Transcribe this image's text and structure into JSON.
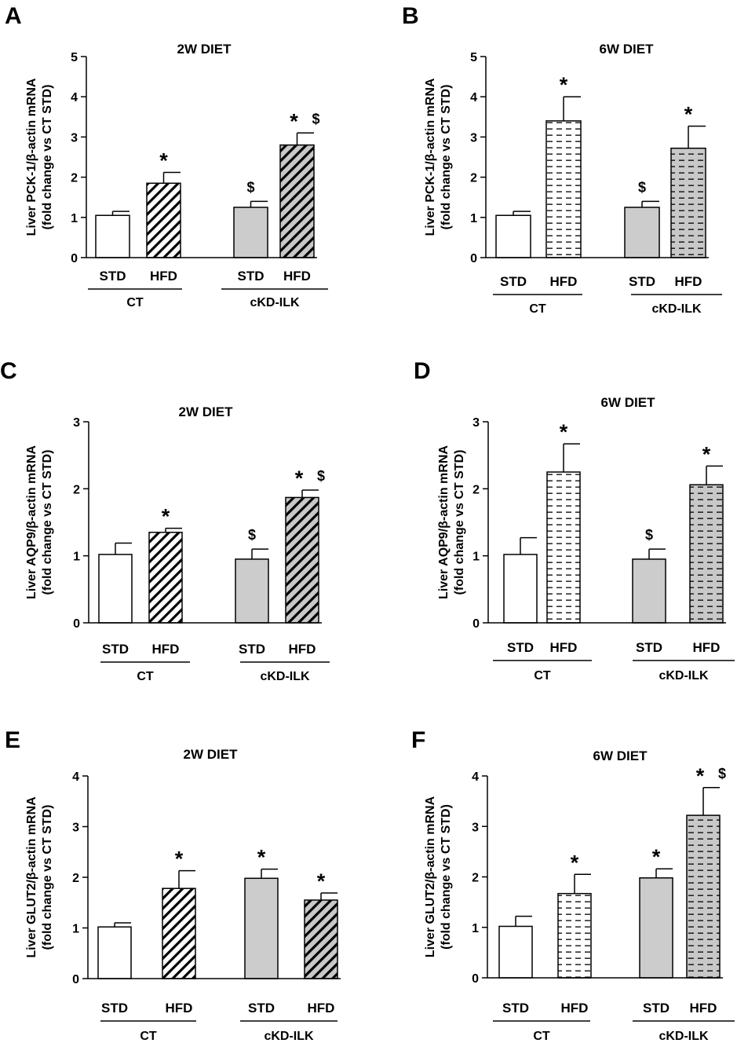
{
  "colors": {
    "axis": "#000000",
    "STD_CT": "#ffffff",
    "STD_cKD": "#cccccc",
    "HFD_CT": "#ffffff",
    "HFD_cKD": "#c8c8c8"
  },
  "chart_data": [
    {
      "letter": "A",
      "type": "bar",
      "title": "2W DIET",
      "ylabel_line1": "Liver PCK-1/β-actin mRNA",
      "ylabel_line2": "(fold change vs CT STD)",
      "ylim": [
        0,
        5
      ],
      "yticks": [
        "0",
        "1",
        "2",
        "3",
        "4",
        "5"
      ],
      "pattern": "diagonal",
      "categories": [
        "STD",
        "HFD",
        "STD",
        "HFD"
      ],
      "groups": [
        "CT",
        "cKD-ILK"
      ],
      "values": [
        1.05,
        1.85,
        1.25,
        2.8
      ],
      "errors": [
        0.1,
        0.27,
        0.15,
        0.3
      ],
      "marks": [
        [
          "",
          ""
        ],
        [
          "*",
          ""
        ],
        [
          "",
          "$"
        ],
        [
          "*",
          "$"
        ]
      ]
    },
    {
      "letter": "B",
      "type": "bar",
      "title": "6W DIET",
      "ylabel_line1": "Liver PCK-1/β-actin mRNA",
      "ylabel_line2": "(fold change vs CT STD)",
      "ylim": [
        0,
        5
      ],
      "yticks": [
        "0",
        "1",
        "2",
        "3",
        "4",
        "5"
      ],
      "pattern": "dashed",
      "categories": [
        "STD",
        "HFD",
        "STD",
        "HFD"
      ],
      "groups": [
        "CT",
        "cKD-ILK"
      ],
      "values": [
        1.05,
        3.4,
        1.25,
        2.72
      ],
      "errors": [
        0.1,
        0.6,
        0.15,
        0.55
      ],
      "marks": [
        [
          "",
          ""
        ],
        [
          "*",
          ""
        ],
        [
          "",
          "$"
        ],
        [
          "*",
          ""
        ]
      ]
    },
    {
      "letter": "C",
      "type": "bar",
      "title": "2W DIET",
      "ylabel_line1": "Liver AQP9/β-actin mRNA",
      "ylabel_line2": "(fold change vs CT STD)",
      "ylim": [
        0,
        3
      ],
      "yticks": [
        "0",
        "1",
        "2",
        "3"
      ],
      "pattern": "diagonal",
      "categories": [
        "STD",
        "HFD",
        "STD",
        "HFD"
      ],
      "groups": [
        "CT",
        "cKD-ILK"
      ],
      "values": [
        1.02,
        1.35,
        0.95,
        1.87
      ],
      "errors": [
        0.17,
        0.06,
        0.15,
        0.11
      ],
      "marks": [
        [
          "",
          ""
        ],
        [
          "*",
          ""
        ],
        [
          "",
          "$"
        ],
        [
          "*",
          "$"
        ]
      ]
    },
    {
      "letter": "D",
      "type": "bar",
      "title": "6W DIET",
      "ylabel_line1": "Liver AQP9/β-actin mRNA",
      "ylabel_line2": "(fold change vs CT STD)",
      "ylim": [
        0,
        3
      ],
      "yticks": [
        "0",
        "1",
        "2",
        "3"
      ],
      "pattern": "dashed",
      "categories": [
        "STD",
        "HFD",
        "STD",
        "HFD"
      ],
      "groups": [
        "CT",
        "cKD-ILK"
      ],
      "values": [
        1.02,
        2.25,
        0.95,
        2.06
      ],
      "errors": [
        0.25,
        0.42,
        0.15,
        0.28
      ],
      "marks": [
        [
          "",
          ""
        ],
        [
          "*",
          ""
        ],
        [
          "",
          "$"
        ],
        [
          "*",
          ""
        ]
      ]
    },
    {
      "letter": "E",
      "type": "bar",
      "title": "2W DIET",
      "ylabel_line1": "Liver GLUT2/β-actin mRNA",
      "ylabel_line2": "(fold change vs CT STD)",
      "ylim": [
        0,
        4
      ],
      "yticks": [
        "0",
        "1",
        "2",
        "3",
        "4"
      ],
      "pattern": "diagonal",
      "categories": [
        "STD",
        "HFD",
        "STD",
        "HFD"
      ],
      "groups": [
        "CT",
        "cKD-ILK"
      ],
      "values": [
        1.02,
        1.78,
        1.98,
        1.55
      ],
      "errors": [
        0.08,
        0.35,
        0.18,
        0.14
      ],
      "marks": [
        [
          "",
          ""
        ],
        [
          "*",
          ""
        ],
        [
          "*",
          ""
        ],
        [
          "*",
          ""
        ]
      ]
    },
    {
      "letter": "F",
      "type": "bar",
      "title": "6W DIET",
      "ylabel_line1": "Liver GLUT2/β-actin mRNA",
      "ylabel_line2": "(fold change vs CT STD)",
      "ylim": [
        0,
        4
      ],
      "yticks": [
        "0",
        "1",
        "2",
        "3",
        "4"
      ],
      "pattern": "dashed",
      "categories": [
        "STD",
        "HFD",
        "STD",
        "HFD"
      ],
      "groups": [
        "CT",
        "cKD-ILK"
      ],
      "values": [
        1.02,
        1.67,
        1.98,
        3.22
      ],
      "errors": [
        0.2,
        0.38,
        0.18,
        0.55
      ],
      "marks": [
        [
          "",
          ""
        ],
        [
          "*",
          ""
        ],
        [
          "*",
          ""
        ],
        [
          "*",
          "$"
        ]
      ]
    }
  ]
}
